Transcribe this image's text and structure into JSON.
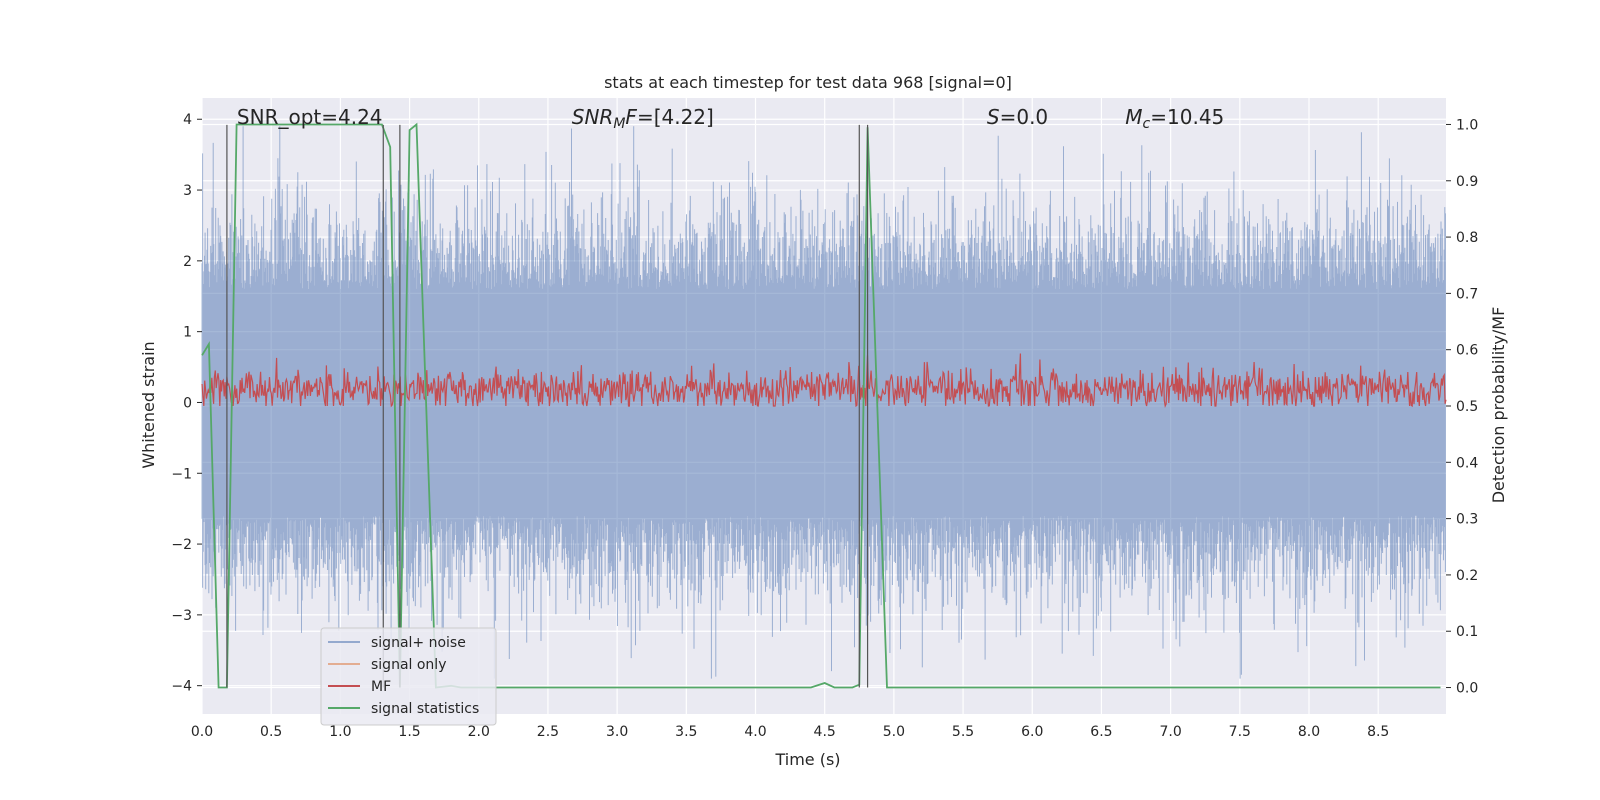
{
  "chart_data": {
    "type": "line",
    "title": "stats at each timestep for test data 968 [signal=0]",
    "xlabel": "Time (s)",
    "ylabel_left": "Whitened strain",
    "ylabel_right": "Detection probability/MF",
    "xlim": [
      0.0,
      8.99
    ],
    "ylim_left": [
      -4.4,
      4.3
    ],
    "ylim_right": [
      -0.047,
      1.047
    ],
    "x_ticks": [
      "0.0",
      "0.5",
      "1.0",
      "1.5",
      "2.0",
      "2.5",
      "3.0",
      "3.5",
      "4.0",
      "4.5",
      "5.0",
      "5.5",
      "6.0",
      "6.5",
      "7.0",
      "7.5",
      "8.0",
      "8.5"
    ],
    "y_ticks_left": [
      "4",
      "3",
      "2",
      "1",
      "0",
      "−1",
      "−2",
      "−3",
      "−4"
    ],
    "y_ticks_right": [
      "1.0",
      "0.9",
      "0.8",
      "0.7",
      "0.6",
      "0.5",
      "0.4",
      "0.3",
      "0.2",
      "0.1",
      "0.0"
    ],
    "grid": true,
    "legend_position": "lower-left",
    "background": "#eaeaf2",
    "annotations": [
      {
        "text": "SNR_opt=4.24",
        "x": 0.18,
        "y": 4.0
      },
      {
        "text": "SNR_MF=[4.22]",
        "x": 2.6,
        "y": 4.0
      },
      {
        "text": "S=0.0",
        "x": 5.6,
        "y": 4.0
      },
      {
        "text": "M_c=10.45",
        "x": 6.6,
        "y": 4.0
      }
    ],
    "vlines": [
      0.18,
      1.31,
      1.43,
      4.75,
      4.81
    ],
    "series": [
      {
        "name": "signal+ noise",
        "color": "#4c72b0",
        "axis": "left",
        "description": "whitened noise, amplitude roughly ±2 with spikes to ±4, sampled from t=0 to 9 s",
        "envelope": {
          "typical": 1.6,
          "peak": 3.9
        }
      },
      {
        "name": "signal only",
        "color": "#dd8452",
        "axis": "left",
        "values": []
      },
      {
        "name": "MF",
        "color": "#c44e52",
        "axis": "right",
        "description": "matched filter output fluctuating around 0.53 with range about 0.50–0.60",
        "mean": 0.53,
        "range": [
          0.5,
          0.61
        ]
      },
      {
        "name": "signal statistics",
        "color": "#55a868",
        "axis": "right",
        "x": [
          0.0,
          0.05,
          0.12,
          0.18,
          0.25,
          1.3,
          1.36,
          1.43,
          1.5,
          1.55,
          1.69,
          1.8,
          1.87,
          2.0,
          4.4,
          4.5,
          4.57,
          4.7,
          4.75,
          4.81,
          4.88,
          4.95,
          8.95
        ],
        "values": [
          0.59,
          0.61,
          0.0,
          0.0,
          1.0,
          1.0,
          0.96,
          0.0,
          0.99,
          1.0,
          0.0,
          0.003,
          0.0,
          0.0,
          0.0,
          0.008,
          0.0,
          0.0,
          0.005,
          0.995,
          0.5,
          0.0,
          0.0
        ]
      }
    ]
  }
}
